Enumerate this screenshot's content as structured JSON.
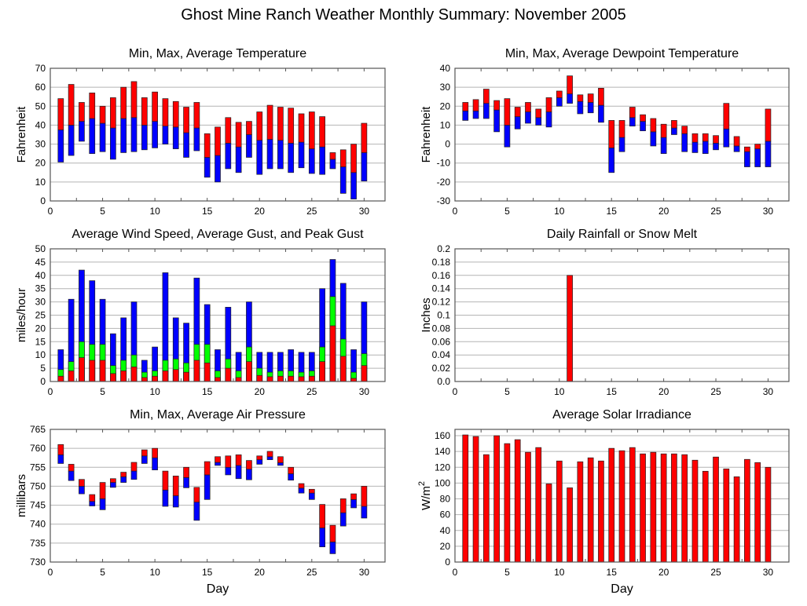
{
  "title": "Ghost Mine Ranch Weather Monthly Summary: November 2005",
  "colors": {
    "red": "#ff0000",
    "blue": "#0000ff",
    "green": "#00ff00",
    "grid": "#b4b4b4",
    "axis": "#555555"
  },
  "chart_data": [
    {
      "id": "temperature",
      "type": "bar",
      "subtype": "floating-range",
      "title": "Min, Max, Average Temperature",
      "xlabel": "",
      "ylabel": "Fahrenheit",
      "xlim": [
        0,
        32
      ],
      "ylim": [
        0,
        70
      ],
      "xticks": [
        0,
        5,
        10,
        15,
        20,
        25,
        30
      ],
      "yticks": [
        0,
        10,
        20,
        30,
        40,
        50,
        60,
        70
      ],
      "grid": true,
      "x": [
        1,
        2,
        3,
        4,
        5,
        6,
        7,
        8,
        9,
        10,
        11,
        12,
        13,
        14,
        15,
        16,
        17,
        18,
        19,
        20,
        21,
        22,
        23,
        24,
        25,
        26,
        27,
        28,
        29,
        30
      ],
      "series": [
        {
          "name": "Min",
          "values": [
            20.5,
            24,
            31.5,
            25,
            26,
            22,
            25.5,
            26,
            27,
            28,
            30,
            27.5,
            23,
            26.5,
            12.5,
            10,
            17,
            15,
            23,
            14,
            17,
            17,
            15,
            17.5,
            14.5,
            14,
            17,
            4,
            1,
            10.5
          ]
        },
        {
          "name": "Average",
          "values": [
            37.5,
            40,
            42,
            43.5,
            41,
            38.5,
            43.5,
            44,
            40,
            42,
            39.5,
            39,
            36,
            38.5,
            23,
            24,
            30.5,
            28.5,
            35,
            32,
            32.5,
            32,
            30.5,
            31,
            27.5,
            28.5,
            22,
            18,
            15,
            25.5
          ]
        },
        {
          "name": "Max",
          "values": [
            54,
            61.5,
            52,
            57,
            50,
            54.5,
            60,
            63,
            54.5,
            57.5,
            54,
            52.5,
            49.5,
            52,
            35.5,
            39,
            44,
            41.5,
            42,
            47,
            50.5,
            49.5,
            49,
            46,
            47,
            44.5,
            25.5,
            27,
            30,
            41
          ]
        }
      ]
    },
    {
      "id": "dewpoint",
      "type": "bar",
      "subtype": "floating-range",
      "title": "Min, Max, Average Dewpoint Temperature",
      "xlabel": "",
      "ylabel": "Fahrenheit",
      "xlim": [
        0,
        32
      ],
      "ylim": [
        -30,
        40
      ],
      "xticks": [
        0,
        5,
        10,
        15,
        20,
        25,
        30
      ],
      "yticks": [
        -30,
        -20,
        -10,
        0,
        10,
        20,
        30,
        40
      ],
      "grid": true,
      "x": [
        1,
        2,
        3,
        4,
        5,
        6,
        7,
        8,
        9,
        10,
        11,
        12,
        13,
        14,
        15,
        16,
        17,
        18,
        19,
        20,
        21,
        22,
        23,
        24,
        25,
        26,
        27,
        28,
        29,
        30
      ],
      "series": [
        {
          "name": "Min",
          "values": [
            12.5,
            13.5,
            13.5,
            6.5,
            -1.5,
            8,
            11,
            10,
            9,
            20,
            21.5,
            16,
            16.5,
            11.5,
            -15,
            -4,
            9.5,
            7,
            -1,
            -5,
            5,
            -4,
            -4.5,
            -5,
            -3,
            -1.5,
            -4,
            -12,
            -12,
            -12
          ]
        },
        {
          "name": "Average",
          "values": [
            17.5,
            17.5,
            21.5,
            18,
            10,
            14.5,
            17,
            14,
            17,
            24.5,
            26.5,
            22.5,
            22,
            20.5,
            -2,
            3.5,
            14,
            12,
            6.5,
            3.5,
            8.5,
            5.5,
            1,
            1.5,
            0.5,
            8,
            -1,
            -4,
            -2.5,
            1.5
          ]
        },
        {
          "name": "Max",
          "values": [
            22,
            23.5,
            29,
            23,
            24,
            19.5,
            22,
            18.5,
            24.5,
            28,
            36,
            26,
            26.5,
            29.5,
            12.5,
            12.5,
            19.5,
            15.5,
            13.5,
            10.5,
            12.5,
            9.5,
            5.5,
            5.5,
            4.5,
            21.5,
            4,
            -1.5,
            0,
            18.5
          ]
        }
      ]
    },
    {
      "id": "wind",
      "type": "bar",
      "subtype": "overlaid",
      "title": "Average Wind Speed, Average Gust, and Peak Gust",
      "xlabel": "",
      "ylabel": "miles/hour",
      "xlim": [
        0,
        32
      ],
      "ylim": [
        0,
        50
      ],
      "xticks": [
        0,
        5,
        10,
        15,
        20,
        25,
        30
      ],
      "yticks": [
        0,
        5,
        10,
        15,
        20,
        25,
        30,
        35,
        40,
        45,
        50
      ],
      "grid": true,
      "x": [
        1,
        2,
        3,
        4,
        5,
        6,
        7,
        8,
        9,
        10,
        11,
        12,
        13,
        14,
        15,
        16,
        17,
        18,
        19,
        20,
        21,
        22,
        23,
        24,
        25,
        26,
        27,
        28,
        29,
        30
      ],
      "series": [
        {
          "name": "Peak Gust",
          "color": "blue",
          "values": [
            12,
            31,
            42,
            38,
            31,
            18,
            24,
            30,
            8,
            13,
            41,
            24,
            22,
            39,
            29,
            12,
            28,
            11,
            30,
            11,
            11,
            11,
            12,
            11,
            11,
            35,
            46,
            37,
            12,
            30
          ]
        },
        {
          "name": "Average Gust",
          "color": "green",
          "values": [
            4.5,
            7.5,
            15,
            14,
            14,
            6,
            8,
            10,
            3.5,
            4,
            8,
            8.5,
            7,
            14,
            14,
            4,
            8.5,
            4,
            13,
            5,
            3.5,
            4,
            4,
            3.5,
            4,
            13,
            32,
            16,
            3.5,
            10.5
          ]
        },
        {
          "name": "Average Wind Speed",
          "color": "red",
          "values": [
            2,
            4,
            9,
            8,
            8,
            3,
            4,
            5.5,
            1.5,
            2,
            4,
            4.5,
            3.5,
            8,
            7,
            1.5,
            5,
            1.5,
            7.5,
            2.3,
            1.8,
            2,
            2,
            1.8,
            2,
            7.5,
            21,
            9.5,
            1.2,
            6
          ]
        }
      ]
    },
    {
      "id": "rainfall",
      "type": "bar",
      "title": "Daily Rainfall or Snow Melt",
      "xlabel": "",
      "ylabel": "Inches",
      "xlim": [
        0,
        32
      ],
      "ylim": [
        0,
        0.2
      ],
      "xticks": [
        0,
        5,
        10,
        15,
        20,
        25,
        30
      ],
      "yticks": [
        "0.0",
        "0.02",
        "0.04",
        "0.06",
        "0.08",
        "0.1",
        "0.12",
        "0.14",
        "0.16",
        "0.18",
        "0.2"
      ],
      "grid": true,
      "x": [
        1,
        2,
        3,
        4,
        5,
        6,
        7,
        8,
        9,
        10,
        11,
        12,
        13,
        14,
        15,
        16,
        17,
        18,
        19,
        20,
        21,
        22,
        23,
        24,
        25,
        26,
        27,
        28,
        29,
        30
      ],
      "values": [
        0,
        0,
        0,
        0,
        0,
        0,
        0,
        0,
        0,
        0,
        0.16,
        0,
        0,
        0,
        0,
        0,
        0,
        0,
        0,
        0,
        0,
        0,
        0,
        0,
        0,
        0,
        0,
        0,
        0,
        0
      ]
    },
    {
      "id": "pressure",
      "type": "bar",
      "subtype": "floating-range",
      "title": "Min, Max, Average Air Pressure",
      "xlabel": "Day",
      "ylabel": "millibars",
      "xlim": [
        0,
        32
      ],
      "ylim": [
        730,
        765
      ],
      "xticks": [
        0,
        5,
        10,
        15,
        20,
        25,
        30
      ],
      "yticks": [
        730,
        735,
        740,
        745,
        750,
        755,
        760,
        765
      ],
      "grid": true,
      "x": [
        1,
        2,
        3,
        4,
        5,
        6,
        7,
        8,
        9,
        10,
        11,
        12,
        13,
        14,
        15,
        16,
        17,
        18,
        19,
        20,
        21,
        22,
        23,
        24,
        25,
        26,
        27,
        28,
        29,
        30
      ],
      "series": [
        {
          "name": "Min",
          "values": [
            756,
            751.5,
            748,
            744.8,
            743.8,
            749.7,
            751,
            751.8,
            756,
            754.3,
            744.7,
            744.5,
            749.6,
            741,
            746.5,
            755.5,
            753,
            752,
            751.7,
            755.8,
            757,
            755.5,
            751.6,
            748.2,
            746.5,
            734,
            732.2,
            739.5,
            744.3,
            741.6
          ]
        },
        {
          "name": "Average",
          "values": [
            758.3,
            754,
            750,
            746,
            746.7,
            751,
            752.5,
            754,
            758,
            757.5,
            749,
            747.5,
            752.3,
            745.8,
            753,
            756.3,
            755,
            755.5,
            754.5,
            757,
            757.8,
            756.2,
            753.3,
            749.5,
            748.2,
            739,
            735.3,
            743,
            746.5,
            744.7
          ]
        },
        {
          "name": "Max",
          "values": [
            761,
            755.8,
            751.8,
            747.8,
            751,
            752,
            753.7,
            756.3,
            759.6,
            760,
            754,
            752.7,
            755,
            749.7,
            756.5,
            757.8,
            758,
            758.3,
            756.8,
            758,
            759.2,
            757.8,
            755,
            750.7,
            749.2,
            745.2,
            739.7,
            746.7,
            748,
            750
          ]
        }
      ]
    },
    {
      "id": "solar",
      "type": "bar",
      "title": "Average Solar Irradiance",
      "xlabel": "Day",
      "ylabel": "W/m2",
      "xlim": [
        0,
        32
      ],
      "ylim": [
        0,
        168
      ],
      "xticks": [
        0,
        5,
        10,
        15,
        20,
        25,
        30
      ],
      "yticks": [
        0,
        20,
        40,
        60,
        80,
        100,
        120,
        140,
        160
      ],
      "grid": true,
      "x": [
        1,
        2,
        3,
        4,
        5,
        6,
        7,
        8,
        9,
        10,
        11,
        12,
        13,
        14,
        15,
        16,
        17,
        18,
        19,
        20,
        21,
        22,
        23,
        24,
        25,
        26,
        27,
        28,
        29,
        30
      ],
      "values": [
        161,
        159,
        136,
        160,
        150,
        155,
        139,
        145,
        99,
        128,
        94,
        127,
        132,
        128,
        144,
        141,
        145,
        137,
        139,
        137,
        137,
        136,
        129,
        115,
        133,
        118,
        108,
        130,
        126,
        120
      ]
    }
  ]
}
